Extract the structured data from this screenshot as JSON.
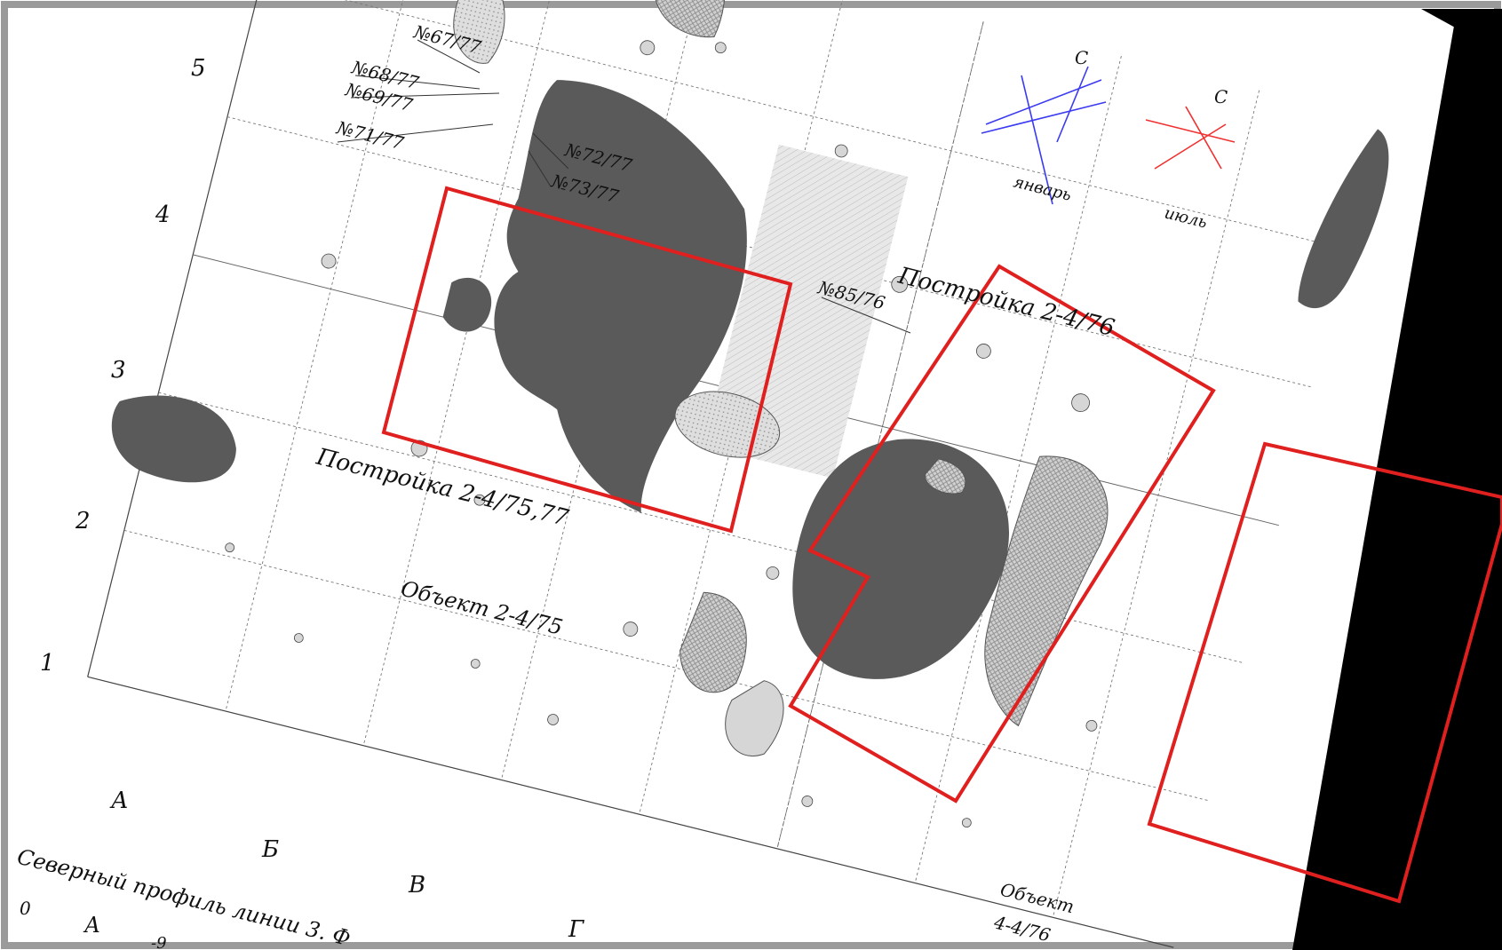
{
  "grid": {
    "rows": [
      "1",
      "2",
      "3",
      "4",
      "5"
    ],
    "columns": [
      "А",
      "Б",
      "В",
      "Г"
    ]
  },
  "finds": [
    "№67/77",
    "№68/77",
    "№69/77",
    "№71/77",
    "№72/77",
    "№73/77",
    "№85/76"
  ],
  "structures": {
    "building_75_77": "Постройка 2-4/75,77",
    "building_76": "Постройка 2-4/76",
    "object_75": "Объект 2-4/75",
    "object_76_line1": "Объект",
    "object_76_line2": "4-4/76"
  },
  "compass": {
    "january": {
      "north_label": "С",
      "label": "январь",
      "color": "#3b3bf0"
    },
    "july": {
      "north_label": "С",
      "label": "июль",
      "color": "#f03030"
    }
  },
  "profile_caption": "Северный профиль линии 3. Ф",
  "profile_letters": [
    "0",
    "А",
    "-9"
  ],
  "colors": {
    "highlight": "#e01f1f",
    "pit_dark": "#5a5a5a",
    "pit_light": "#d6d6d6",
    "background_page": "#ffffff",
    "scan_void": "#000000"
  }
}
